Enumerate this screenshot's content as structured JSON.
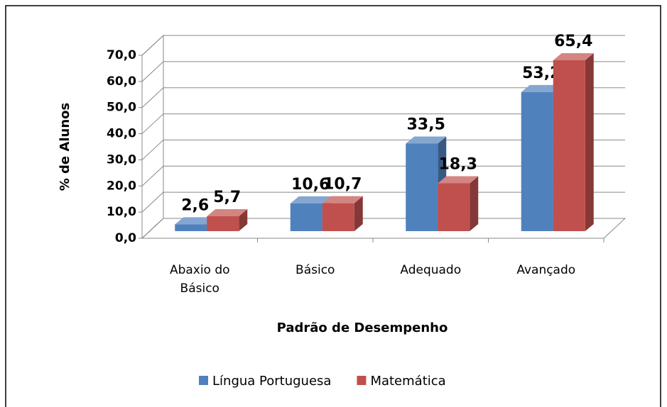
{
  "chart_data": {
    "type": "bar3d",
    "y_label": "% de Alunos",
    "x_label": "Padrão de Desempenho",
    "categories": [
      "Abaxio do Básico",
      "Básico",
      "Adequado",
      "Avançado"
    ],
    "series": [
      {
        "name": "Língua Portuguesa",
        "color": "#4f81bd",
        "values": [
          2.6,
          10.6,
          33.5,
          53.2
        ],
        "value_labels": [
          "2,6",
          "10,6",
          "33,5",
          "53,2"
        ]
      },
      {
        "name": "Matemática",
        "color": "#c0504d",
        "values": [
          5.7,
          10.7,
          18.3,
          65.4
        ],
        "value_labels": [
          "5,7",
          "10,7",
          "18,3",
          "65,4"
        ]
      }
    ],
    "ylim": [
      0,
      70
    ],
    "yticks": [
      {
        "value": 0,
        "label": "0,0"
      },
      {
        "value": 10,
        "label": "10,0"
      },
      {
        "value": 20,
        "label": "20,0"
      },
      {
        "value": 30,
        "label": "30,0"
      },
      {
        "value": 40,
        "label": "40,0"
      },
      {
        "value": 50,
        "label": "50,0"
      },
      {
        "value": 60,
        "label": "60,0"
      },
      {
        "value": 70,
        "label": "70,0"
      }
    ],
    "grid": true,
    "legend": "bottom"
  }
}
